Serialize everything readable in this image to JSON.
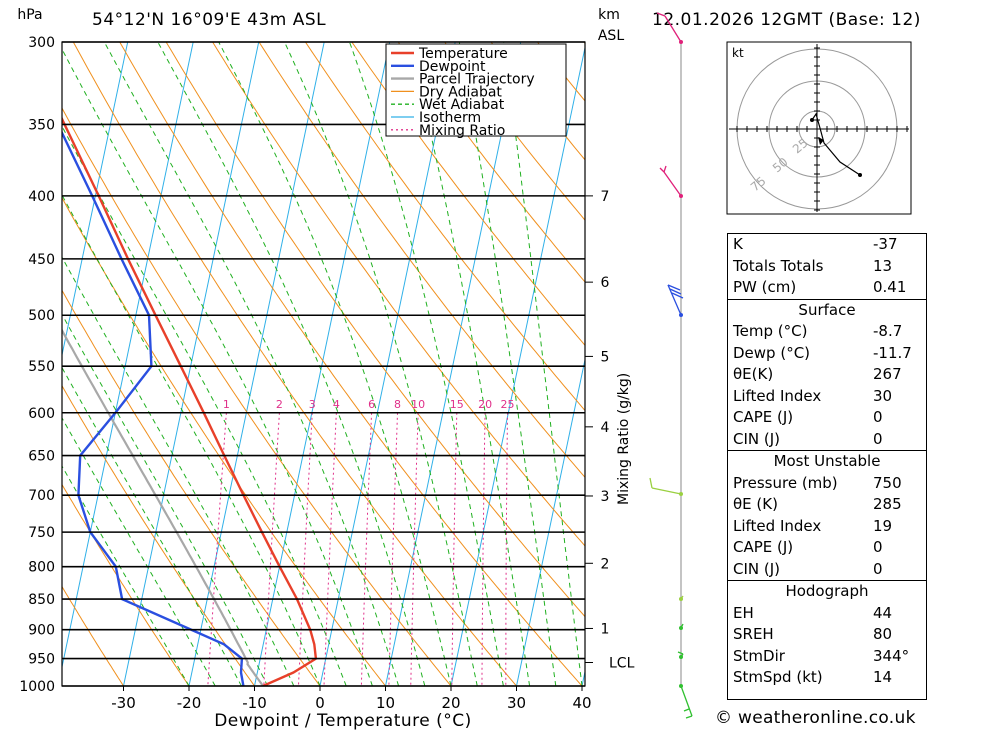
{
  "header": {
    "location": "54°12'N 16°09'E 43m ASL",
    "datetime": "12.01.2026 12GMT (Base: 12)",
    "pressure_unit": "hPa",
    "height_unit_top": "km",
    "height_unit_bottom": "ASL"
  },
  "chart_data": {
    "type": "skew-t",
    "xlabel": "Dewpoint / Temperature (°C)",
    "ylabel": "hPa",
    "x_ticks": [
      "-30",
      "-20",
      "-10",
      "0",
      "10",
      "20",
      "30",
      "40"
    ],
    "x_tick_values": [
      -30,
      -20,
      -10,
      0,
      10,
      20,
      30,
      40
    ],
    "pressure_levels": [
      300,
      350,
      400,
      450,
      500,
      550,
      600,
      650,
      700,
      750,
      800,
      850,
      900,
      950,
      1000
    ],
    "height_km_ticks": [
      {
        "label": "7",
        "pressure": 400
      },
      {
        "label": "6",
        "pressure": 470
      },
      {
        "label": "5",
        "pressure": 540
      },
      {
        "label": "4",
        "pressure": 616
      },
      {
        "label": "3",
        "pressure": 701
      },
      {
        "label": "2",
        "pressure": 795
      },
      {
        "label": "1",
        "pressure": 898
      }
    ],
    "lcl": {
      "label": "LCL",
      "pressure": 957
    },
    "mixing_ratio_label": "Mixing Ratio (g/kg)",
    "mixing_ratio_values": [
      "1",
      "2",
      "3",
      "4",
      "6",
      "8",
      "10",
      "15",
      "20",
      "25"
    ],
    "legend": [
      "Temperature",
      "Dewpoint",
      "Parcel Trajectory",
      "Dry Adiabat",
      "Wet Adiabat",
      "Isotherm",
      "Mixing Ratio"
    ],
    "colors": {
      "temperature": "#e8402a",
      "dewpoint": "#2a4fe0",
      "parcel": "#a8a8a8",
      "dry_adiabat": "#f0901e",
      "wet_adiabat": "#20b020",
      "isotherm": "#30b0e8",
      "mixing_ratio": "#e0308a"
    },
    "series": [
      {
        "name": "Temperature",
        "points": [
          {
            "p": 1000,
            "t": -8.7
          },
          {
            "p": 975,
            "t": -4.5
          },
          {
            "p": 950,
            "t": -1.5
          },
          {
            "p": 925,
            "t": -2.2
          },
          {
            "p": 900,
            "t": -3.3
          },
          {
            "p": 850,
            "t": -6.3
          },
          {
            "p": 800,
            "t": -10.0
          },
          {
            "p": 750,
            "t": -13.8
          },
          {
            "p": 700,
            "t": -17.8
          },
          {
            "p": 650,
            "t": -22.0
          },
          {
            "p": 600,
            "t": -26.5
          },
          {
            "p": 550,
            "t": -31.5
          },
          {
            "p": 500,
            "t": -37.0
          },
          {
            "p": 450,
            "t": -43.0
          },
          {
            "p": 400,
            "t": -49.5
          },
          {
            "p": 350,
            "t": -57.0
          },
          {
            "p": 300,
            "t": -65.5
          }
        ]
      },
      {
        "name": "Dewpoint",
        "points": [
          {
            "p": 1000,
            "t": -11.7
          },
          {
            "p": 975,
            "t": -12.5
          },
          {
            "p": 950,
            "t": -12.8
          },
          {
            "p": 925,
            "t": -16.0
          },
          {
            "p": 900,
            "t": -21.5
          },
          {
            "p": 850,
            "t": -33.0
          },
          {
            "p": 800,
            "t": -35.0
          },
          {
            "p": 750,
            "t": -40.0
          },
          {
            "p": 700,
            "t": -43.0
          },
          {
            "p": 650,
            "t": -44.0
          },
          {
            "p": 600,
            "t": -40.0
          },
          {
            "p": 550,
            "t": -36.0
          },
          {
            "p": 500,
            "t": -38.0
          },
          {
            "p": 450,
            "t": -44.0
          },
          {
            "p": 400,
            "t": -50.5
          },
          {
            "p": 350,
            "t": -58.0
          },
          {
            "p": 300,
            "t": -66.0
          }
        ]
      }
    ]
  },
  "hodograph": {
    "unit": "kt",
    "rings": [
      "25",
      "50",
      "75"
    ]
  },
  "indices": {
    "basic": [
      {
        "label": "K",
        "value": "-37"
      },
      {
        "label": "Totals Totals",
        "value": "13"
      },
      {
        "label": "PW (cm)",
        "value": "0.41"
      }
    ],
    "surface": {
      "title": "Surface",
      "rows": [
        {
          "label": "Temp (°C)",
          "value": "-8.7"
        },
        {
          "label": "Dewp (°C)",
          "value": "-11.7"
        },
        {
          "label": "θE(K)",
          "value": "267"
        },
        {
          "label": "Lifted Index",
          "value": "30"
        },
        {
          "label": "CAPE (J)",
          "value": "0"
        },
        {
          "label": "CIN (J)",
          "value": "0"
        }
      ]
    },
    "most_unstable": {
      "title": "Most Unstable",
      "rows": [
        {
          "label": "Pressure (mb)",
          "value": "750"
        },
        {
          "label": "θE (K)",
          "value": "285"
        },
        {
          "label": "Lifted Index",
          "value": "19"
        },
        {
          "label": "CAPE (J)",
          "value": "0"
        },
        {
          "label": "CIN (J)",
          "value": "0"
        }
      ]
    },
    "hodograph": {
      "title": "Hodograph",
      "rows": [
        {
          "label": "EH",
          "value": "44"
        },
        {
          "label": "SREH",
          "value": "80"
        },
        {
          "label": "StmDir",
          "value": "344°"
        },
        {
          "label": "StmSpd (kt)",
          "value": "14"
        }
      ]
    }
  },
  "credit": "© weatheronline.co.uk"
}
